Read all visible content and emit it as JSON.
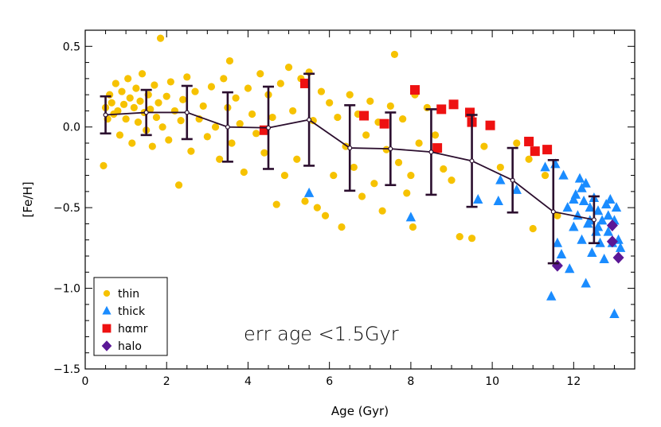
{
  "chart_data": {
    "type": "scatter",
    "title": "",
    "xlabel": "Age (Gyr)",
    "ylabel": "[Fe/H]",
    "xlim": [
      0,
      13.5
    ],
    "ylim": [
      -1.5,
      0.6
    ],
    "xticks": [
      0,
      2,
      4,
      6,
      8,
      10,
      12
    ],
    "xtick_labels": [
      "0",
      "2",
      "4",
      "6",
      "8",
      "10",
      "12"
    ],
    "yticks": [
      0.5,
      0.0,
      -0.5,
      -1.0,
      -1.5
    ],
    "ytick_labels": [
      "0.5",
      "0.0",
      "−0.5",
      "−1.0",
      "−1.5"
    ],
    "annotation": "err age <1.5Gyr",
    "colors": {
      "thin": "#F6C200",
      "thick": "#1A8CFF",
      "hamr": "#EE1111",
      "halo": "#5B1796",
      "trend": "#2B0E2E"
    },
    "legend": {
      "placement": "bottom-left",
      "entries": [
        {
          "key": "thin",
          "label": "thin",
          "marker": "circle"
        },
        {
          "key": "thick",
          "label": "thick",
          "marker": "triangle"
        },
        {
          "key": "hamr",
          "label": "hαmr",
          "marker": "square"
        },
        {
          "key": "halo",
          "label": "halo",
          "marker": "diamond"
        }
      ]
    },
    "series": [
      {
        "name": "thin",
        "marker": "circle",
        "points": [
          [
            0.45,
            -0.24
          ],
          [
            0.5,
            0.12
          ],
          [
            0.55,
            0.05
          ],
          [
            0.6,
            0.2
          ],
          [
            0.65,
            0.15
          ],
          [
            0.7,
            0.08
          ],
          [
            0.75,
            0.27
          ],
          [
            0.8,
            0.1
          ],
          [
            0.85,
            -0.05
          ],
          [
            0.9,
            0.22
          ],
          [
            0.95,
            0.14
          ],
          [
            1.0,
            0.05
          ],
          [
            1.05,
            0.3
          ],
          [
            1.1,
            0.18
          ],
          [
            1.15,
            -0.1
          ],
          [
            1.2,
            0.12
          ],
          [
            1.25,
            0.24
          ],
          [
            1.3,
            0.03
          ],
          [
            1.35,
            0.16
          ],
          [
            1.4,
            0.33
          ],
          [
            1.45,
            0.09
          ],
          [
            1.5,
            -0.02
          ],
          [
            1.55,
            0.2
          ],
          [
            1.6,
            0.11
          ],
          [
            1.65,
            -0.12
          ],
          [
            1.7,
            0.26
          ],
          [
            1.75,
            0.06
          ],
          [
            1.8,
            0.15
          ],
          [
            1.85,
            0.55
          ],
          [
            1.9,
            0.0
          ],
          [
            2.0,
            0.19
          ],
          [
            2.05,
            -0.08
          ],
          [
            2.1,
            0.28
          ],
          [
            2.2,
            0.1
          ],
          [
            2.3,
            -0.36
          ],
          [
            2.35,
            0.04
          ],
          [
            2.4,
            0.17
          ],
          [
            2.5,
            0.31
          ],
          [
            2.6,
            -0.15
          ],
          [
            2.7,
            0.22
          ],
          [
            2.8,
            0.05
          ],
          [
            2.9,
            0.13
          ],
          [
            3.0,
            -0.06
          ],
          [
            3.1,
            0.25
          ],
          [
            3.2,
            0.0
          ],
          [
            3.3,
            -0.2
          ],
          [
            3.4,
            0.3
          ],
          [
            3.5,
            0.12
          ],
          [
            3.55,
            0.41
          ],
          [
            3.6,
            -0.1
          ],
          [
            3.7,
            0.18
          ],
          [
            3.8,
            0.02
          ],
          [
            3.9,
            -0.28
          ],
          [
            4.0,
            0.24
          ],
          [
            4.1,
            0.08
          ],
          [
            4.2,
            -0.04
          ],
          [
            4.3,
            0.33
          ],
          [
            4.4,
            -0.16
          ],
          [
            4.5,
            0.2
          ],
          [
            4.6,
            0.06
          ],
          [
            4.7,
            -0.48
          ],
          [
            4.8,
            0.27
          ],
          [
            4.9,
            -0.3
          ],
          [
            5.0,
            0.37
          ],
          [
            5.1,
            0.1
          ],
          [
            5.2,
            -0.2
          ],
          [
            5.3,
            0.3
          ],
          [
            5.4,
            -0.46
          ],
          [
            5.5,
            0.34
          ],
          [
            5.6,
            0.04
          ],
          [
            5.7,
            -0.5
          ],
          [
            5.8,
            0.22
          ],
          [
            5.9,
            -0.55
          ],
          [
            6.0,
            0.15
          ],
          [
            6.1,
            -0.3
          ],
          [
            6.2,
            0.06
          ],
          [
            6.3,
            -0.62
          ],
          [
            6.4,
            -0.12
          ],
          [
            6.5,
            0.2
          ],
          [
            6.6,
            -0.25
          ],
          [
            6.7,
            0.08
          ],
          [
            6.8,
            -0.43
          ],
          [
            6.9,
            -0.05
          ],
          [
            7.0,
            0.16
          ],
          [
            7.1,
            -0.35
          ],
          [
            7.2,
            0.03
          ],
          [
            7.3,
            -0.52
          ],
          [
            7.4,
            -0.14
          ],
          [
            7.5,
            0.13
          ],
          [
            7.6,
            0.45
          ],
          [
            7.7,
            -0.22
          ],
          [
            7.8,
            0.05
          ],
          [
            7.9,
            -0.41
          ],
          [
            8.0,
            -0.3
          ],
          [
            8.05,
            -0.62
          ],
          [
            8.1,
            0.2
          ],
          [
            8.2,
            -0.1
          ],
          [
            8.4,
            0.12
          ],
          [
            8.6,
            -0.05
          ],
          [
            8.8,
            -0.26
          ],
          [
            9.0,
            -0.33
          ],
          [
            9.2,
            -0.68
          ],
          [
            9.5,
            -0.69
          ],
          [
            9.8,
            -0.12
          ],
          [
            10.2,
            -0.25
          ],
          [
            10.6,
            -0.1
          ],
          [
            10.9,
            -0.2
          ],
          [
            11.0,
            -0.63
          ],
          [
            11.3,
            -0.3
          ],
          [
            11.6,
            -0.55
          ]
        ]
      },
      {
        "name": "thick",
        "marker": "triangle",
        "points": [
          [
            5.5,
            -0.41
          ],
          [
            8.0,
            -0.56
          ],
          [
            9.65,
            -0.45
          ],
          [
            10.15,
            -0.46
          ],
          [
            10.2,
            -0.33
          ],
          [
            10.6,
            -0.39
          ],
          [
            11.3,
            -0.25
          ],
          [
            11.45,
            -1.05
          ],
          [
            11.55,
            -0.23
          ],
          [
            11.6,
            -0.72
          ],
          [
            11.7,
            -0.79
          ],
          [
            11.75,
            -0.3
          ],
          [
            11.85,
            -0.5
          ],
          [
            11.9,
            -0.88
          ],
          [
            12.0,
            -0.62
          ],
          [
            12.05,
            -0.42
          ],
          [
            12.1,
            -0.55
          ],
          [
            12.15,
            -0.32
          ],
          [
            12.2,
            -0.7
          ],
          [
            12.25,
            -0.46
          ],
          [
            12.3,
            -0.35
          ],
          [
            12.3,
            -0.97
          ],
          [
            12.35,
            -0.6
          ],
          [
            12.4,
            -0.5
          ],
          [
            12.45,
            -0.78
          ],
          [
            12.5,
            -0.44
          ],
          [
            12.55,
            -0.65
          ],
          [
            12.6,
            -0.52
          ],
          [
            12.65,
            -0.72
          ],
          [
            12.7,
            -0.58
          ],
          [
            12.75,
            -0.82
          ],
          [
            12.8,
            -0.48
          ],
          [
            12.85,
            -0.65
          ],
          [
            12.9,
            -0.45
          ],
          [
            12.95,
            -0.72
          ],
          [
            13.0,
            -0.58
          ],
          [
            13.0,
            -1.16
          ],
          [
            13.05,
            -0.5
          ],
          [
            13.1,
            -0.7
          ],
          [
            13.15,
            -0.75
          ],
          [
            12.2,
            -0.38
          ],
          [
            12.4,
            -0.58
          ],
          [
            12.6,
            -0.62
          ],
          [
            12.85,
            -0.55
          ],
          [
            12.0,
            -0.45
          ]
        ]
      },
      {
        "name": "hamr",
        "marker": "square",
        "points": [
          [
            4.4,
            -0.02
          ],
          [
            5.4,
            0.27
          ],
          [
            6.85,
            0.07
          ],
          [
            7.35,
            0.02
          ],
          [
            8.1,
            0.23
          ],
          [
            8.65,
            -0.13
          ],
          [
            8.75,
            0.11
          ],
          [
            9.05,
            0.14
          ],
          [
            9.45,
            0.09
          ],
          [
            9.5,
            0.03
          ],
          [
            9.95,
            0.01
          ],
          [
            10.9,
            -0.09
          ],
          [
            11.05,
            -0.15
          ],
          [
            11.35,
            -0.14
          ]
        ]
      },
      {
        "name": "halo",
        "marker": "diamond",
        "points": [
          [
            11.6,
            -0.86
          ],
          [
            12.95,
            -0.61
          ],
          [
            12.95,
            -0.71
          ],
          [
            13.1,
            -0.81
          ]
        ]
      }
    ],
    "trend": {
      "name": "binned mean",
      "points": [
        {
          "x": 0.5,
          "y": 0.075,
          "err": 0.115
        },
        {
          "x": 1.5,
          "y": 0.09,
          "err": 0.14
        },
        {
          "x": 2.5,
          "y": 0.09,
          "err": 0.165
        },
        {
          "x": 3.5,
          "y": 0.0,
          "err": 0.215
        },
        {
          "x": 4.5,
          "y": -0.005,
          "err": 0.255
        },
        {
          "x": 5.5,
          "y": 0.045,
          "err": 0.285
        },
        {
          "x": 6.5,
          "y": -0.13,
          "err": 0.265
        },
        {
          "x": 7.5,
          "y": -0.135,
          "err": 0.225
        },
        {
          "x": 8.5,
          "y": -0.155,
          "err": 0.265
        },
        {
          "x": 9.5,
          "y": -0.21,
          "err": 0.285
        },
        {
          "x": 10.5,
          "y": -0.33,
          "err": 0.2
        },
        {
          "x": 11.5,
          "y": -0.525,
          "err": 0.32
        },
        {
          "x": 12.5,
          "y": -0.575,
          "err": 0.145
        }
      ]
    }
  }
}
